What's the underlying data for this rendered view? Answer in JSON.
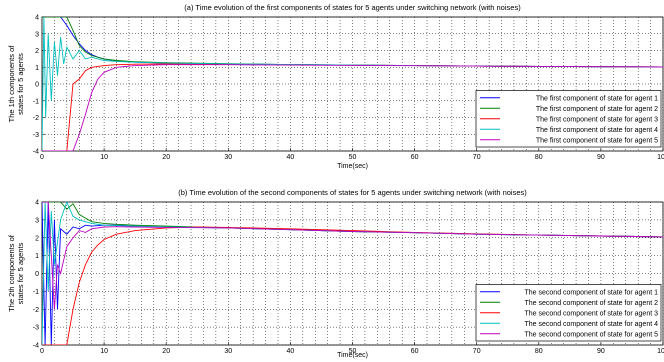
{
  "chart_data": [
    {
      "type": "line",
      "title": "(a) Time evolution of the first components of states for 5 agents under switching network (with noises)",
      "xlabel": "Time(sec)",
      "ylabel_line1": "The 1th components of",
      "ylabel_line2": "states for 5 agents",
      "xlim": [
        0,
        100
      ],
      "ylim": [
        -4,
        4
      ],
      "xticks": [
        "0",
        "10",
        "20",
        "30",
        "40",
        "50",
        "60",
        "70",
        "80",
        "90",
        "100"
      ],
      "yticks": [
        "-4",
        "-3",
        "-2",
        "-1",
        "0",
        "1",
        "2",
        "3",
        "4"
      ],
      "grid": true,
      "legend_position": "lower-right",
      "series": [
        {
          "name": "The first component of state for agent 1",
          "color": "#0000ff",
          "x": [
            0,
            0.5,
            1,
            1.5,
            2,
            3,
            4,
            5,
            6,
            7,
            8,
            9,
            10,
            12,
            15,
            20,
            30,
            40,
            50,
            60,
            70,
            80,
            90,
            100
          ],
          "y": [
            4,
            4,
            4,
            4,
            4,
            4,
            3.5,
            2.9,
            2.4,
            2.0,
            1.75,
            1.6,
            1.5,
            1.38,
            1.3,
            1.25,
            1.2,
            1.16,
            1.13,
            1.1,
            1.07,
            1.05,
            1.03,
            1.02
          ]
        },
        {
          "name": "The first component of state for agent 2",
          "color": "#008000",
          "x": [
            0,
            1,
            2,
            3,
            4,
            5,
            6,
            7,
            8,
            10,
            12,
            15,
            20,
            30,
            40,
            50,
            60,
            70,
            80,
            90,
            100
          ],
          "y": [
            4,
            4,
            4,
            4,
            4,
            3.2,
            2.3,
            1.9,
            1.7,
            1.5,
            1.4,
            1.33,
            1.27,
            1.21,
            1.16,
            1.13,
            1.1,
            1.07,
            1.05,
            1.03,
            1.02
          ]
        },
        {
          "name": "The first component of state for agent 3",
          "color": "#ff0000",
          "x": [
            0,
            1,
            2,
            3,
            4,
            5,
            6,
            7,
            8,
            10,
            12,
            15,
            20,
            30,
            40,
            50,
            60,
            70,
            80,
            90,
            100
          ],
          "y": [
            -4,
            -4,
            -4,
            -4,
            -4,
            0.0,
            0.3,
            0.8,
            1.0,
            1.1,
            1.15,
            1.18,
            1.2,
            1.18,
            1.15,
            1.12,
            1.1,
            1.07,
            1.05,
            1.03,
            1.02
          ]
        },
        {
          "name": "The first component of state for agent 4",
          "color": "#00bfbf",
          "x": [
            0,
            0.3,
            0.6,
            1,
            1.5,
            2,
            2.5,
            3,
            3.5,
            4,
            5,
            6,
            7,
            8,
            10,
            12,
            15,
            20,
            30,
            40,
            50,
            60,
            70,
            80,
            90,
            100
          ],
          "y": [
            -4,
            4,
            -2,
            3,
            -1,
            2.5,
            0.5,
            2.8,
            1.2,
            2.2,
            1.5,
            2.0,
            1.5,
            1.6,
            1.4,
            1.35,
            1.3,
            1.25,
            1.2,
            1.16,
            1.13,
            1.1,
            1.07,
            1.05,
            1.03,
            1.02
          ]
        },
        {
          "name": "The first component of state for agent 5",
          "color": "#bf00bf",
          "x": [
            0,
            1,
            2,
            3,
            4,
            5,
            6,
            7,
            8,
            9,
            10,
            12,
            15,
            20,
            30,
            40,
            50,
            60,
            70,
            80,
            90,
            100
          ],
          "y": [
            -4,
            -4,
            -4,
            -4,
            -4,
            -4,
            -3.0,
            -1.8,
            -0.5,
            0.3,
            0.7,
            1.0,
            1.1,
            1.15,
            1.15,
            1.13,
            1.11,
            1.09,
            1.07,
            1.05,
            1.03,
            1.02
          ]
        }
      ]
    },
    {
      "type": "line",
      "title": "(b) Time evolution of the second components of states for 5 agents under switching network (with noises)",
      "xlabel": "Time(sec)",
      "ylabel_line1": "The 2th components of",
      "ylabel_line2": "states for 5 agents",
      "xlim": [
        0,
        100
      ],
      "ylim": [
        -4,
        4
      ],
      "xticks": [
        "0",
        "10",
        "20",
        "30",
        "40",
        "50",
        "60",
        "70",
        "80",
        "90",
        "100"
      ],
      "yticks": [
        "-4",
        "-3",
        "-2",
        "-1",
        "0",
        "1",
        "2",
        "3",
        "4"
      ],
      "grid": true,
      "legend_position": "lower-right",
      "series": [
        {
          "name": "The second component of state for agent 1",
          "color": "#0000ff",
          "x": [
            0,
            0.5,
            1,
            1.5,
            2,
            2.5,
            3,
            4,
            5,
            6,
            7,
            8,
            10,
            12,
            15,
            20,
            30,
            40,
            50,
            60,
            70,
            80,
            90,
            100
          ],
          "y": [
            4,
            -4,
            4,
            -4,
            3,
            -2,
            2.5,
            2.2,
            2.6,
            2.5,
            2.7,
            2.65,
            2.7,
            2.7,
            2.65,
            2.6,
            2.55,
            2.45,
            2.35,
            2.28,
            2.2,
            2.15,
            2.1,
            2.05
          ]
        },
        {
          "name": "The second component of state for agent 2",
          "color": "#008000",
          "x": [
            0,
            1,
            2,
            3,
            4,
            5,
            6,
            7,
            8,
            10,
            12,
            15,
            20,
            30,
            40,
            50,
            60,
            70,
            80,
            90,
            100
          ],
          "y": [
            4,
            4,
            4,
            4,
            3.6,
            3.9,
            3.3,
            3.1,
            2.9,
            2.8,
            2.75,
            2.7,
            2.65,
            2.55,
            2.45,
            2.35,
            2.28,
            2.2,
            2.15,
            2.1,
            2.05
          ]
        },
        {
          "name": "The second component of state for agent 3",
          "color": "#ff0000",
          "x": [
            0,
            1,
            2,
            3,
            4,
            5,
            6,
            7,
            8,
            9,
            10,
            12,
            15,
            20,
            25,
            30,
            40,
            50,
            60,
            70,
            80,
            90,
            100
          ],
          "y": [
            -4,
            -4,
            -4,
            -4,
            -4,
            -2.0,
            -0.5,
            0.5,
            1.2,
            1.6,
            1.9,
            2.2,
            2.4,
            2.55,
            2.6,
            2.58,
            2.5,
            2.4,
            2.3,
            2.22,
            2.15,
            2.1,
            2.05
          ]
        },
        {
          "name": "The second component of state for agent 4",
          "color": "#00bfbf",
          "x": [
            0,
            0.5,
            1,
            1.5,
            2,
            3,
            4,
            5,
            6,
            7,
            8,
            10,
            12,
            15,
            20,
            30,
            40,
            50,
            60,
            70,
            80,
            90,
            100
          ],
          "y": [
            -4,
            4,
            -1,
            3.5,
            0.5,
            3.0,
            4,
            3.2,
            3.0,
            2.9,
            2.8,
            2.7,
            2.68,
            2.65,
            2.6,
            2.55,
            2.45,
            2.35,
            2.28,
            2.2,
            2.15,
            2.1,
            2.05
          ]
        },
        {
          "name": "The second component of state for agent 5",
          "color": "#bf00bf",
          "x": [
            0,
            1,
            2,
            2.5,
            3,
            4,
            5,
            6,
            7,
            8,
            10,
            12,
            15,
            20,
            30,
            40,
            50,
            60,
            70,
            80,
            90,
            100
          ],
          "y": [
            4,
            4,
            -2,
            0.5,
            0.0,
            1.5,
            2.0,
            2.4,
            2.3,
            2.5,
            2.6,
            2.62,
            2.6,
            2.58,
            2.55,
            2.45,
            2.35,
            2.28,
            2.2,
            2.15,
            2.1,
            2.05
          ]
        }
      ]
    }
  ]
}
